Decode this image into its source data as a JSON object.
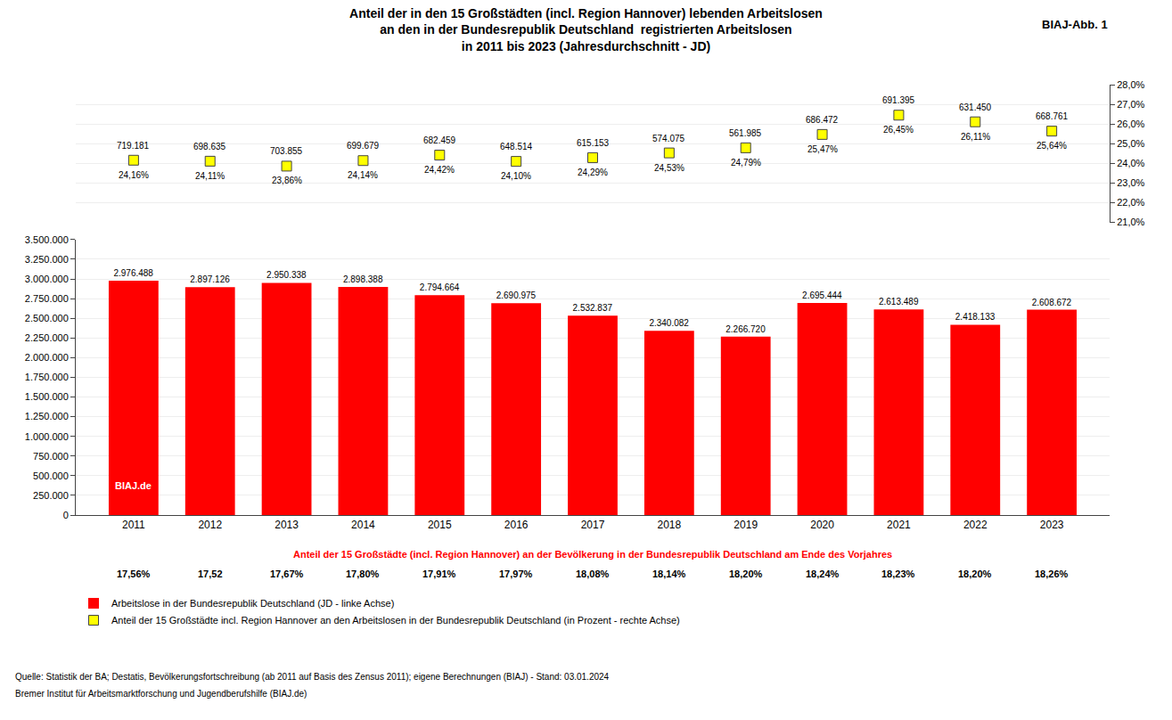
{
  "chart_data": {
    "type": "bar",
    "title": [
      "Anteil der in den 15 Großstädten (incl. Region Hannover) lebenden Arbeitslosen",
      "an den in der Bundesrepublik Deutschland  registrierten Arbeitslosen",
      "in 2011 bis 2023 (Jahresdurchschnitt - JD)"
    ],
    "subtitle": "Anteil der 15 Großstädte (incl. Region Hannover) an der Bevölkerung in der Bundesrepublik Deutschland am Ende des Vorjahres",
    "subtitle_labels": [
      "17,56%",
      "17,52",
      "17,67%",
      "17,80%",
      "17,91%",
      "17,97%",
      "18,08%",
      "18,14%",
      "18,20%",
      "18,24%",
      "18,23%",
      "18,20%",
      "18,26%"
    ],
    "categories": [
      "2011",
      "2012",
      "2013",
      "2014",
      "2015",
      "2016",
      "2017",
      "2018",
      "2019",
      "2020",
      "2021",
      "2022",
      "2023"
    ],
    "series": [
      {
        "name": "Arbeitslose in der Bundesrepublik Deutschland (JD - linke Achse)",
        "type": "bar",
        "color": "#FF0000",
        "axis": "y",
        "values": [
          2976488,
          2897126,
          2950338,
          2898388,
          2794664,
          2690975,
          2532837,
          2340082,
          2266720,
          2695444,
          2613489,
          2418133,
          2608672
        ],
        "value_labels": [
          "2.976.488",
          "2.897.126",
          "2.950.338",
          "2.898.388",
          "2.794.664",
          "2.690.975",
          "2.532.837",
          "2.340.082",
          "2.266.720",
          "2.695.444",
          "2.613.489",
          "2.418.133",
          "2.608.672"
        ]
      },
      {
        "name": "Anteil der 15 Großstädte incl. Region Hannover an den Arbeitslosen in der Bundesrepublik Deutschland (in Prozent - rechte Achse)",
        "type": "scatter",
        "marker": "square",
        "color": "#FFFF00",
        "axis": "y2",
        "values": [
          24.16,
          24.11,
          23.86,
          24.14,
          24.42,
          24.1,
          24.29,
          24.53,
          24.79,
          25.47,
          26.45,
          26.11,
          25.64
        ],
        "value_labels": [
          "24,16%",
          "24,11%",
          "23,86%",
          "24,14%",
          "24,42%",
          "24,10%",
          "24,29%",
          "24,53%",
          "24,79%",
          "25,47%",
          "26,45%",
          "26,11%",
          "25,64%"
        ],
        "abs_labels": [
          "719.181",
          "698.635",
          "703.855",
          "699.679",
          "682.459",
          "648.514",
          "615.153",
          "574.075",
          "561.985",
          "686.472",
          "691.395",
          "631.450",
          "668.761"
        ]
      }
    ],
    "ylim": [
      0,
      3500000
    ],
    "yticks": [
      0,
      {
        "value": 250000,
        "label": "250.000"
      },
      {
        "value": 500000,
        "label": "500.000"
      },
      {
        "value": 750000,
        "label": "750.000"
      },
      {
        "value": 1000000,
        "label": "1.000.000"
      },
      {
        "value": 1250000,
        "label": "1.250.000"
      },
      {
        "value": 1500000,
        "label": "1.500.000"
      },
      {
        "value": 1750000,
        "label": "1.750.000"
      },
      {
        "value": 2000000,
        "label": "2.000.000"
      },
      {
        "value": 2250000,
        "label": "2.250.000"
      },
      {
        "value": 2500000,
        "label": "2.500.000"
      },
      {
        "value": 2750000,
        "label": "2.750.000"
      },
      {
        "value": 3000000,
        "label": "3.000.000"
      },
      {
        "value": 3250000,
        "label": "3.250.000"
      },
      {
        "value": 3500000,
        "label": "3.500.000"
      }
    ],
    "y2lim": [
      21.0,
      28.0
    ],
    "y2ticks": [
      {
        "value": 21.0,
        "label": "21,0%"
      },
      {
        "value": 22.0,
        "label": "22,0%"
      },
      {
        "value": 23.0,
        "label": "23,0%"
      },
      {
        "value": 24.0,
        "label": "24,0%"
      },
      {
        "value": 25.0,
        "label": "25,0%"
      },
      {
        "value": 26.0,
        "label": "26,0%"
      },
      {
        "value": 27.0,
        "label": "27,0%"
      },
      {
        "value": 28.0,
        "label": "28,0%"
      }
    ],
    "grid": true,
    "data_labels": true,
    "legend": "lower left",
    "annotations": [
      {
        "text": "BIAJ-Abb. 1"
      },
      {
        "text": "BIAJ.de"
      }
    ],
    "source": [
      "Quelle: Statistik der BA; Destatis, Bevölkerungsfortschreibung (ab 2011 auf Basis des Zensus 2011); eigene Berechnungen (BIAJ) - Stand: 03.01.2024",
      "Bremer Institut für Arbeitsmarktforschung und Jugendberufshilfe (BIAJ.de)"
    ]
  }
}
